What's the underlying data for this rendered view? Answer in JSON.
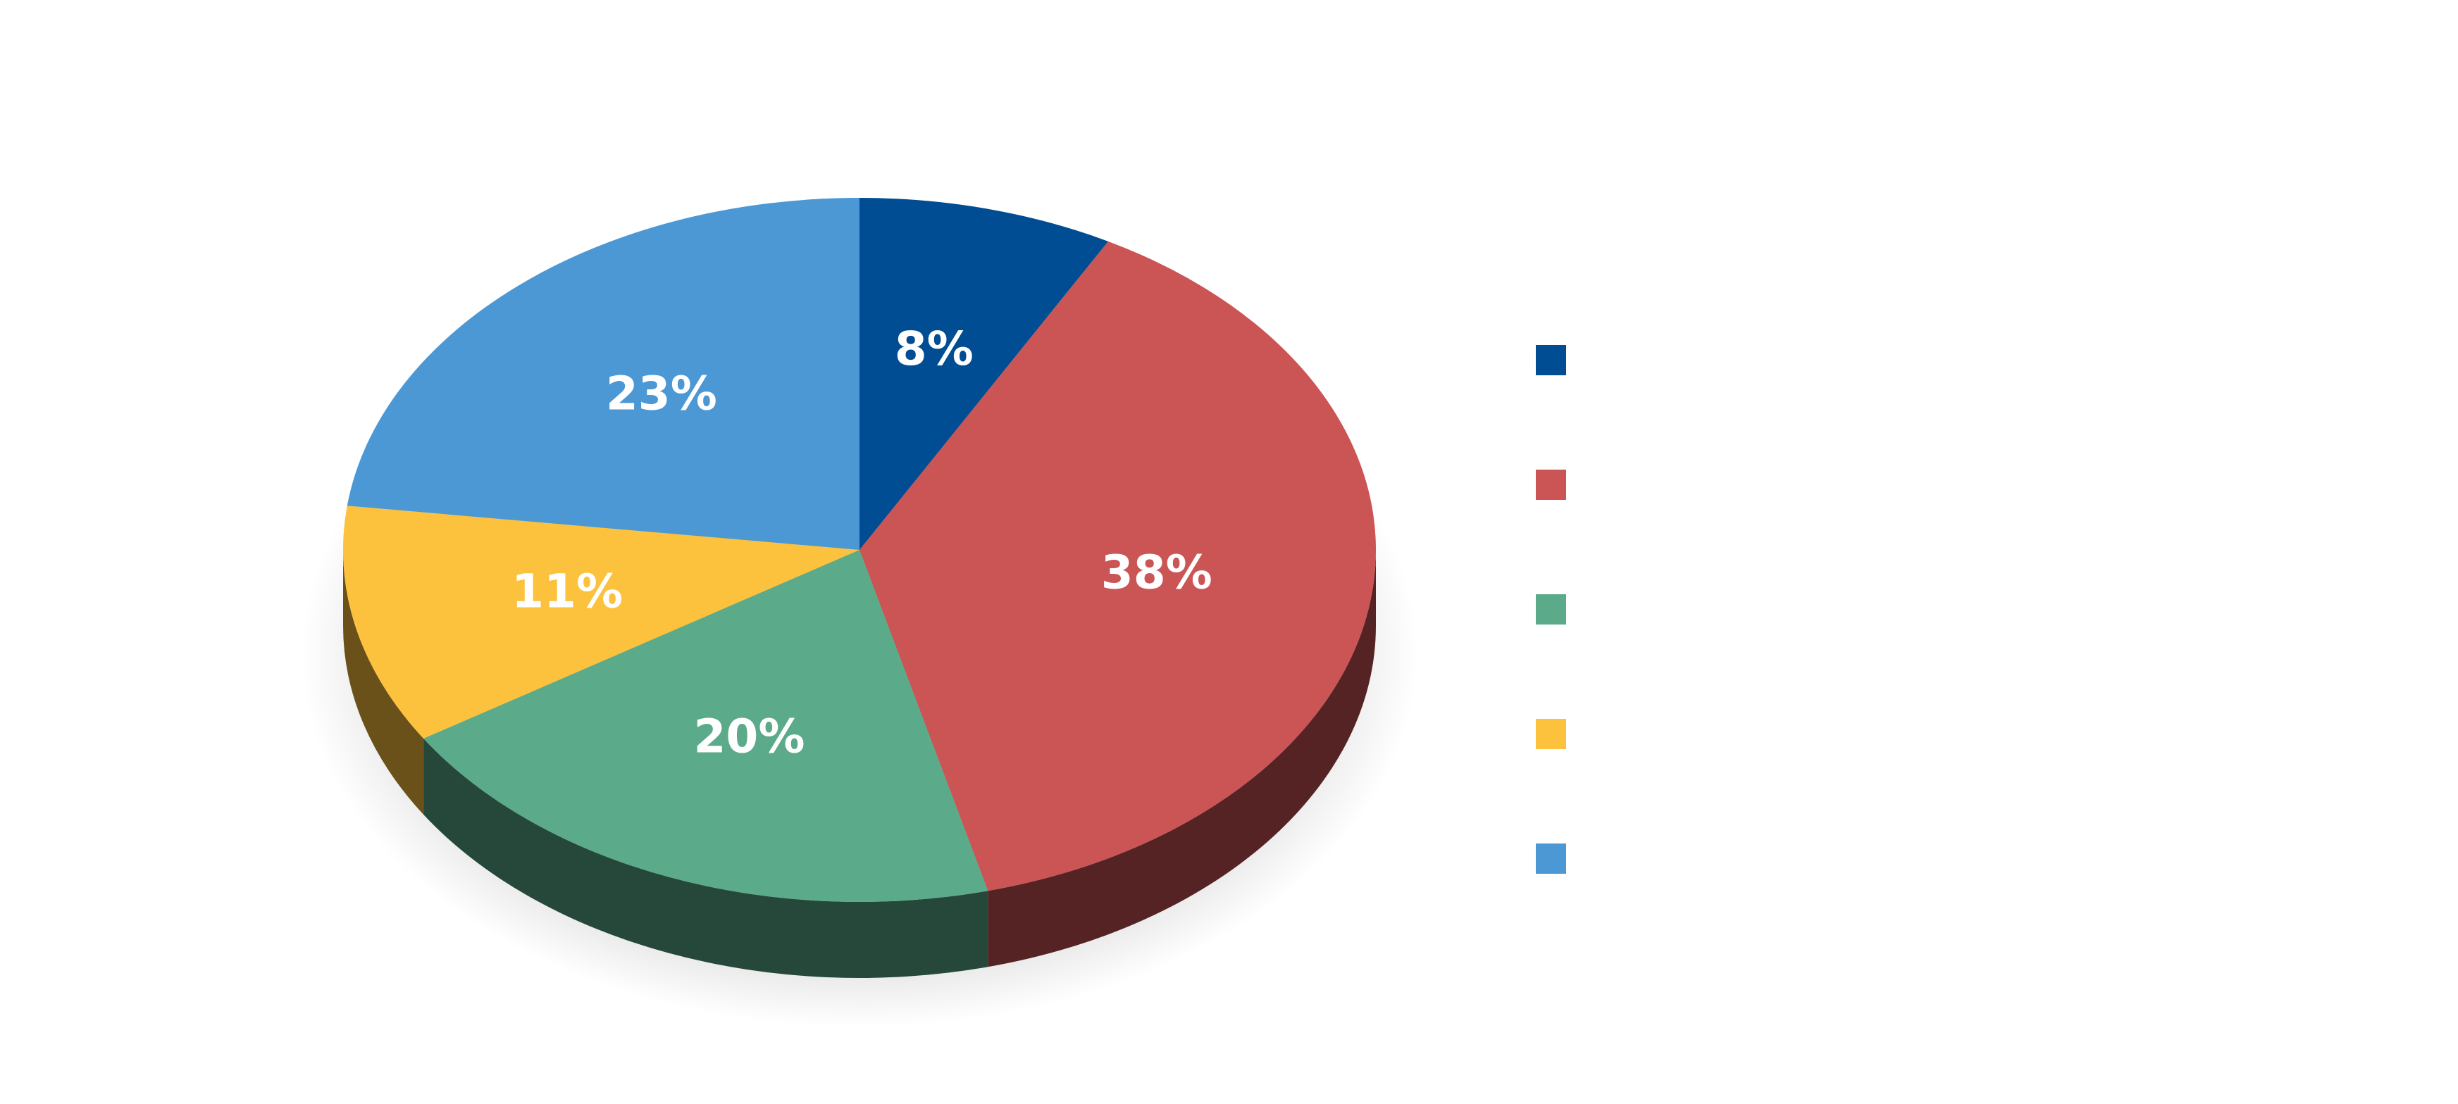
{
  "chart_data": {
    "type": "pie",
    "style": "3d",
    "title": "",
    "series": [
      {
        "values": [
          8,
          38,
          20,
          11,
          23
        ],
        "labels": [
          "8%",
          "38%",
          "20%",
          "11%",
          "23%"
        ],
        "colors": [
          "#004d93",
          "#cb5455",
          "#5bab8a",
          "#fcc23e",
          "#4b98d5"
        ]
      }
    ],
    "legend": {
      "placement": "right",
      "entries": [
        "",
        "",
        "",
        "",
        ""
      ]
    },
    "start_angle": "12 o'clock",
    "direction": "clockwise"
  }
}
